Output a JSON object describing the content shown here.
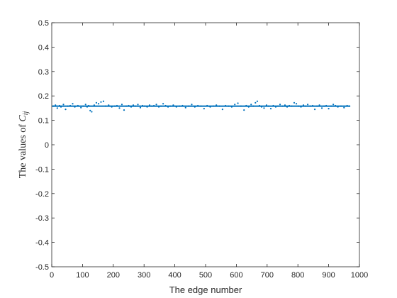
{
  "chart_data": {
    "type": "scatter",
    "xlabel": "The edge number",
    "ylabel": "The values of ",
    "ylabel_math": "C",
    "ylabel_math_sub": "ij",
    "xlim": [
      0,
      1000
    ],
    "ylim": [
      -0.5,
      0.5
    ],
    "xticks": [
      0,
      100,
      200,
      300,
      400,
      500,
      600,
      700,
      800,
      900,
      1000
    ],
    "yticks": [
      -0.5,
      -0.4,
      -0.3,
      -0.2,
      -0.1,
      0,
      0.1,
      0.2,
      0.3,
      0.4,
      0.5
    ],
    "xtick_labels": [
      "0",
      "100",
      "200",
      "300",
      "400",
      "500",
      "600",
      "700",
      "800",
      "900",
      "1000"
    ],
    "ytick_labels": [
      "-0.5",
      "-0.4",
      "-0.3",
      "-0.2",
      "-0.1",
      "0",
      "0.1",
      "0.2",
      "0.3",
      "0.4",
      "0.5"
    ],
    "grid": false,
    "series_color": "#0072BD",
    "reference_line": {
      "value": 0.158,
      "x_range": [
        1,
        970
      ]
    },
    "points": {
      "x": [
        5,
        12,
        18,
        25,
        30,
        38,
        45,
        52,
        60,
        68,
        75,
        85,
        95,
        102,
        110,
        115,
        120,
        125,
        130,
        138,
        145,
        152,
        160,
        168,
        175,
        185,
        195,
        205,
        212,
        220,
        228,
        235,
        242,
        250,
        258,
        265,
        272,
        280,
        288,
        295,
        302,
        310,
        318,
        325,
        332,
        340,
        348,
        355,
        362,
        370,
        378,
        385,
        395,
        405,
        415,
        425,
        435,
        445,
        455,
        465,
        475,
        485,
        495,
        505,
        515,
        525,
        535,
        545,
        555,
        565,
        575,
        585,
        595,
        605,
        615,
        625,
        632,
        640,
        648,
        655,
        662,
        668,
        675,
        682,
        690,
        698,
        705,
        712,
        720,
        728,
        735,
        742,
        750,
        758,
        765,
        772,
        780,
        788,
        795,
        802,
        810,
        818,
        825,
        832,
        840,
        848,
        855,
        862,
        870,
        878,
        885,
        892,
        900,
        908,
        915,
        922,
        930,
        940,
        950,
        960,
        968
      ],
      "y": [
        0.158,
        0.162,
        0.15,
        0.16,
        0.155,
        0.165,
        0.145,
        0.158,
        0.16,
        0.168,
        0.155,
        0.16,
        0.152,
        0.158,
        0.165,
        0.155,
        0.16,
        0.14,
        0.135,
        0.162,
        0.172,
        0.168,
        0.175,
        0.178,
        0.158,
        0.162,
        0.155,
        0.158,
        0.16,
        0.15,
        0.165,
        0.142,
        0.158,
        0.16,
        0.155,
        0.162,
        0.158,
        0.165,
        0.152,
        0.16,
        0.158,
        0.155,
        0.162,
        0.158,
        0.16,
        0.165,
        0.155,
        0.158,
        0.168,
        0.16,
        0.155,
        0.158,
        0.162,
        0.155,
        0.158,
        0.16,
        0.152,
        0.158,
        0.165,
        0.155,
        0.16,
        0.158,
        0.148,
        0.16,
        0.155,
        0.158,
        0.162,
        0.158,
        0.145,
        0.16,
        0.158,
        0.155,
        0.165,
        0.17,
        0.158,
        0.142,
        0.16,
        0.155,
        0.165,
        0.158,
        0.172,
        0.178,
        0.16,
        0.155,
        0.15,
        0.162,
        0.158,
        0.148,
        0.16,
        0.155,
        0.158,
        0.165,
        0.158,
        0.162,
        0.155,
        0.16,
        0.158,
        0.172,
        0.168,
        0.158,
        0.155,
        0.162,
        0.158,
        0.165,
        0.158,
        0.16,
        0.145,
        0.158,
        0.162,
        0.15,
        0.158,
        0.16,
        0.148,
        0.158,
        0.165,
        0.16,
        0.155,
        0.158,
        0.152,
        0.16,
        0.158
      ]
    }
  }
}
